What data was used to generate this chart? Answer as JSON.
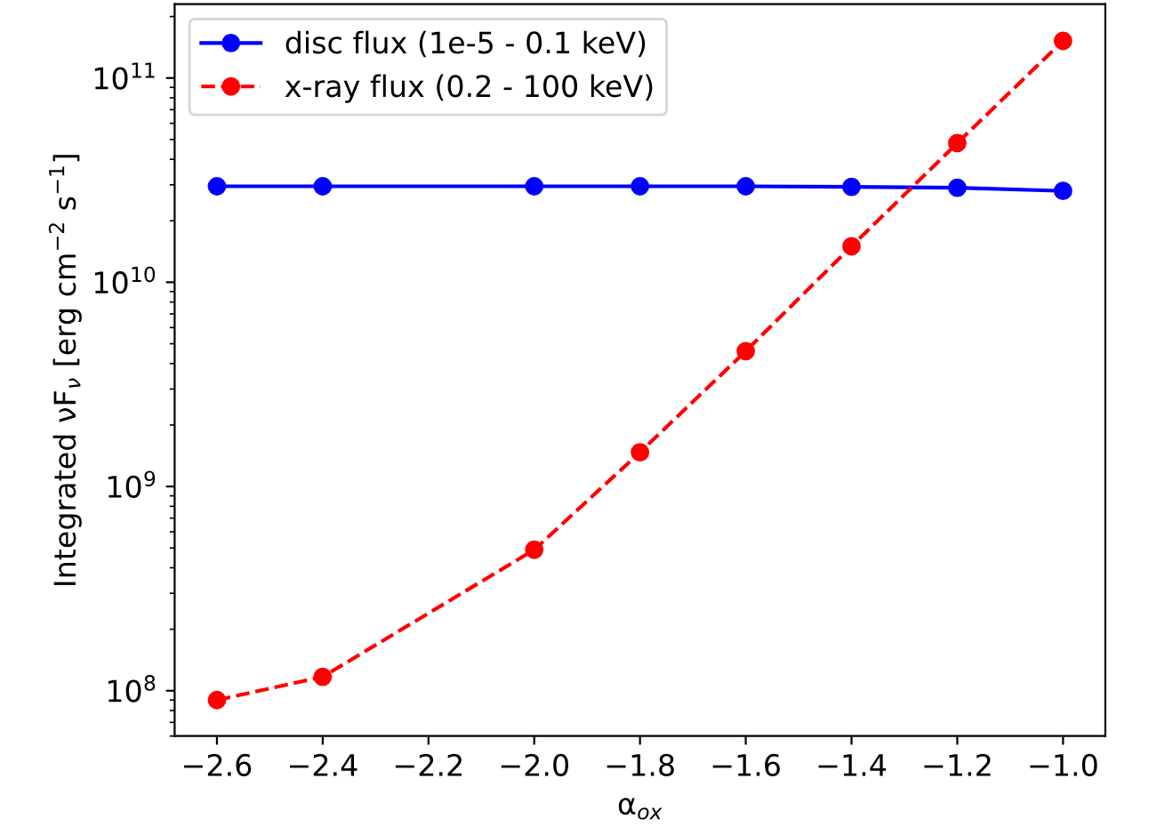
{
  "chart_data": {
    "type": "line",
    "xlabel": "α$_{ox}$",
    "ylabel": "Integrated νF$_{ν}$ [erg cm$^{−2}$ s$^{−1}$]",
    "x": [
      -2.6,
      -2.4,
      -2.0,
      -1.8,
      -1.6,
      -1.4,
      -1.2,
      -1.0
    ],
    "series": [
      {
        "name": "disc flux (1e-5 - 0.1 keV)",
        "color": "#0000ff",
        "line_style": "solid",
        "values": [
          29500000000.0,
          29500000000.0,
          29500000000.0,
          29500000000.0,
          29500000000.0,
          29300000000.0,
          29000000000.0,
          28000000000.0
        ]
      },
      {
        "name": "x-ray flux (0.2 - 100 keV)",
        "color": "#ff0000",
        "line_style": "dashed",
        "values": [
          90000000.0,
          117000000.0,
          490000000.0,
          1470000000.0,
          4600000000.0,
          15000000000.0,
          48000000000.0,
          152000000000.0
        ]
      }
    ],
    "marker": "circle",
    "log": "y",
    "legend": "top left",
    "grid": false,
    "xlim": [
      -2.68,
      -0.92
    ],
    "xticks": [
      {
        "value": -2.6,
        "label": "−2.6"
      },
      {
        "value": -2.4,
        "label": "−2.4"
      },
      {
        "value": -2.2,
        "label": "−2.2"
      },
      {
        "value": -2.0,
        "label": "−2.0"
      },
      {
        "value": -1.8,
        "label": "−1.8"
      },
      {
        "value": -1.6,
        "label": "−1.6"
      },
      {
        "value": -1.4,
        "label": "−1.4"
      },
      {
        "value": -1.2,
        "label": "−1.2"
      },
      {
        "value": -1.0,
        "label": "−1.0"
      }
    ],
    "ylim": [
      60000000.0,
      230000000000.0
    ],
    "yticks": [
      {
        "value": 60000000.0,
        "label": null
      },
      {
        "value": 70000000.0,
        "label": null
      },
      {
        "value": 80000000.0,
        "label": null
      },
      {
        "value": 90000000.0,
        "label": null
      },
      {
        "value": 100000000.0,
        "label": "10$^{8}$"
      },
      {
        "value": 200000000.0,
        "label": null
      },
      {
        "value": 300000000.0,
        "label": null
      },
      {
        "value": 400000000.0,
        "label": null
      },
      {
        "value": 500000000.0,
        "label": null
      },
      {
        "value": 600000000.0,
        "label": null
      },
      {
        "value": 700000000.0,
        "label": null
      },
      {
        "value": 800000000.0,
        "label": null
      },
      {
        "value": 900000000.0,
        "label": null
      },
      {
        "value": 1000000000.0,
        "label": "10$^{9}$"
      },
      {
        "value": 2000000000.0,
        "label": null
      },
      {
        "value": 3000000000.0,
        "label": null
      },
      {
        "value": 4000000000.0,
        "label": null
      },
      {
        "value": 5000000000.0,
        "label": null
      },
      {
        "value": 6000000000.0,
        "label": null
      },
      {
        "value": 7000000000.0,
        "label": null
      },
      {
        "value": 8000000000.0,
        "label": null
      },
      {
        "value": 9000000000.0,
        "label": null
      },
      {
        "value": 10000000000.0,
        "label": "10$^{10}$"
      },
      {
        "value": 20000000000.0,
        "label": null
      },
      {
        "value": 30000000000.0,
        "label": null
      },
      {
        "value": 40000000000.0,
        "label": null
      },
      {
        "value": 50000000000.0,
        "label": null
      },
      {
        "value": 60000000000.0,
        "label": null
      },
      {
        "value": 70000000000.0,
        "label": null
      },
      {
        "value": 80000000000.0,
        "label": null
      },
      {
        "value": 90000000000.0,
        "label": null
      },
      {
        "value": 100000000000.0,
        "label": "10$^{11}$"
      },
      {
        "value": 200000000000.0,
        "label": null
      }
    ]
  }
}
